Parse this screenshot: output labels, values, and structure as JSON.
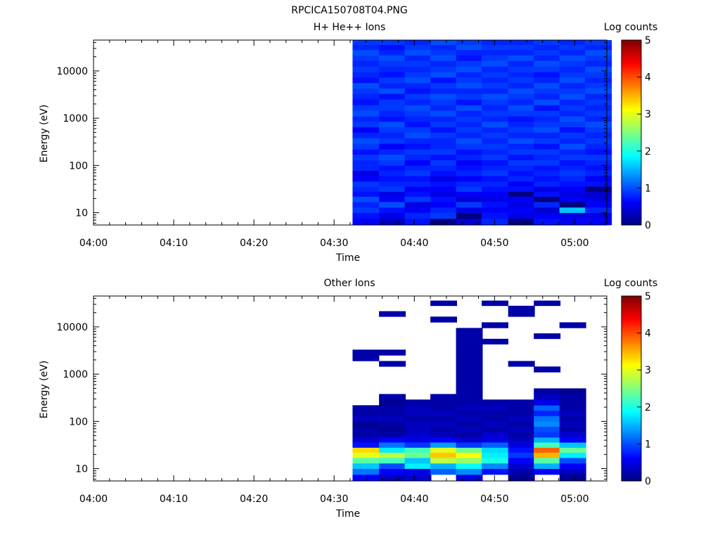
{
  "figure": {
    "title": "RPCICA150708T04.PNG"
  },
  "chart_data": [
    {
      "type": "heatmap",
      "title": "H+ He++ Ions",
      "xlabel": "Time",
      "ylabel": "Energy (eV)",
      "x_ticks": [
        "04:00",
        "04:10",
        "04:20",
        "04:30",
        "04:40",
        "04:50",
        "05:00"
      ],
      "x_range_minutes": [
        0,
        64
      ],
      "y_scale": "log",
      "y_range": [
        5.5,
        45000
      ],
      "y_ticks": [
        "10",
        "100",
        "1000",
        "10000"
      ],
      "colorbar": {
        "label": "Log counts",
        "min": 0,
        "max": 5,
        "ticks": [
          "0",
          "1",
          "2",
          "3",
          "4",
          "5"
        ]
      },
      "time_columns_minutes": [
        32.3,
        35.6,
        38.8,
        42.0,
        45.2,
        48.4,
        51.7,
        54.9,
        58.1,
        61.3
      ],
      "energy_bin_edges": [
        5.5,
        7.5,
        10.0,
        13.0,
        17.0,
        22.0,
        28.0,
        36.0,
        46.0,
        60.0,
        78.0,
        100.0,
        130.0,
        170.0,
        220.0,
        290.0,
        380.0,
        500.0,
        650.0,
        850.0,
        1100.0,
        1450.0,
        1900.0,
        2500.0,
        3300.0,
        4300.0,
        5600.0,
        7300.0,
        9500.0,
        12500.0,
        16500.0,
        21500.0,
        28000.0,
        36000.0,
        45000.0
      ],
      "values": [
        [
          0.6,
          0.7,
          0.9,
          0.8,
          1.0,
          0.7,
          0.8,
          0.9,
          0.6,
          0.5,
          0.8,
          0.8,
          0.9,
          0.7,
          0.9,
          1.0,
          0.8,
          0.6,
          0.9,
          0.8,
          1.0,
          0.9,
          0.7,
          0.8,
          0.9,
          1.0,
          0.7,
          0.8,
          0.9,
          0.8,
          0.9,
          1.0,
          0.8,
          0.9
        ],
        [
          0.3,
          0.5,
          0.7,
          1.0,
          0.6,
          0.5,
          0.9,
          0.8,
          0.7,
          0.8,
          0.7,
          0.9,
          1.0,
          0.8,
          0.6,
          0.9,
          0.8,
          0.9,
          1.0,
          0.7,
          0.8,
          0.9,
          0.9,
          0.7,
          1.0,
          0.8,
          0.9,
          0.7,
          0.8,
          0.9,
          1.0,
          0.8,
          0.7,
          0.9
        ],
        [
          0.7,
          0.8,
          0.6,
          0.5,
          0.9,
          0.7,
          0.6,
          0.8,
          0.7,
          0.9,
          0.8,
          0.6,
          0.8,
          0.9,
          0.7,
          0.8,
          1.0,
          0.9,
          0.7,
          0.8,
          0.9,
          1.0,
          0.8,
          0.9,
          0.7,
          0.8,
          1.0,
          0.9,
          0.8,
          0.9,
          0.8,
          1.0,
          0.9,
          0.8
        ],
        [
          0.0,
          0.9,
          0.8,
          0.6,
          0.7,
          0.5,
          0.6,
          0.7,
          0.5,
          0.7,
          0.8,
          0.9,
          0.7,
          0.9,
          0.8,
          0.8,
          0.9,
          0.7,
          0.9,
          0.8,
          1.0,
          0.8,
          0.9,
          1.0,
          0.8,
          0.9,
          0.7,
          1.0,
          0.9,
          0.8,
          1.0,
          0.9,
          0.8,
          1.0
        ],
        [
          0.4,
          0.0,
          0.5,
          0.9,
          0.4,
          0.6,
          0.9,
          0.8,
          0.6,
          0.8,
          0.7,
          0.6,
          0.8,
          0.7,
          0.9,
          1.0,
          0.8,
          0.9,
          0.8,
          0.9,
          0.8,
          1.0,
          0.7,
          0.9,
          0.8,
          1.0,
          0.9,
          0.8,
          1.0,
          0.9,
          0.7,
          0.8,
          1.0,
          0.9
        ],
        [
          0.8,
          0.7,
          0.6,
          0.7,
          0.5,
          0.6,
          0.7,
          0.8,
          0.7,
          0.9,
          0.8,
          0.7,
          0.9,
          0.8,
          0.9,
          0.8,
          0.9,
          0.8,
          1.0,
          0.8,
          0.9,
          0.8,
          0.9,
          1.0,
          0.8,
          0.9,
          0.8,
          0.9,
          0.8,
          1.0,
          0.9,
          0.8,
          0.9,
          0.8
        ],
        [
          0.0,
          0.5,
          0.6,
          0.5,
          0.6,
          0.0,
          0.7,
          0.6,
          0.8,
          0.7,
          0.8,
          0.9,
          0.7,
          0.9,
          0.8,
          1.0,
          0.8,
          0.9,
          0.8,
          0.7,
          0.9,
          1.0,
          0.8,
          0.9,
          1.0,
          0.8,
          0.9,
          0.8,
          0.9,
          0.8,
          1.0,
          0.8,
          0.9,
          0.8
        ],
        [
          0.7,
          0.6,
          0.4,
          0.8,
          0.0,
          0.7,
          0.5,
          0.8,
          0.7,
          0.8,
          0.7,
          0.9,
          0.8,
          0.9,
          0.7,
          0.9,
          0.8,
          1.0,
          0.9,
          0.8,
          0.9,
          0.7,
          1.0,
          0.8,
          0.9,
          1.0,
          0.8,
          0.7,
          0.9,
          1.0,
          0.8,
          0.9,
          0.8,
          0.9
        ],
        [
          0.6,
          0.5,
          1.6,
          0.0,
          0.6,
          0.5,
          0.6,
          0.7,
          0.8,
          0.9,
          0.8,
          0.7,
          0.9,
          0.8,
          1.0,
          0.8,
          0.9,
          0.7,
          0.9,
          1.0,
          0.8,
          0.9,
          0.8,
          1.0,
          0.9,
          0.8,
          1.0,
          0.9,
          0.8,
          0.9,
          1.0,
          0.8,
          0.9,
          0.8
        ],
        [
          0.6,
          0.5,
          0.8,
          0.6,
          0.5,
          0.4,
          0.0,
          0.7,
          0.6,
          0.8,
          0.7,
          0.8,
          0.9,
          0.7,
          0.8,
          0.9,
          0.8,
          0.9,
          1.0,
          0.8,
          0.9,
          0.8,
          0.9,
          0.8,
          1.0,
          0.9,
          0.8,
          0.9,
          1.0,
          0.8,
          0.9,
          1.0,
          0.8,
          0.9
        ]
      ]
    },
    {
      "type": "heatmap",
      "title": "Other Ions",
      "xlabel": "Time",
      "ylabel": "Energy (eV)",
      "x_ticks": [
        "04:00",
        "04:10",
        "04:20",
        "04:30",
        "04:40",
        "04:50",
        "05:00"
      ],
      "x_range_minutes": [
        0,
        64
      ],
      "y_scale": "log",
      "y_range": [
        5.5,
        45000
      ],
      "y_ticks": [
        "10",
        "100",
        "1000",
        "10000"
      ],
      "colorbar": {
        "label": "Log counts",
        "min": 0,
        "max": 5,
        "ticks": [
          "0",
          "1",
          "2",
          "3",
          "4",
          "5"
        ]
      },
      "time_columns_minutes": [
        32.3,
        35.6,
        38.8,
        42.0,
        45.2,
        48.4,
        51.7,
        54.9,
        58.1,
        61.3
      ],
      "energy_bin_edges": [
        5.5,
        7.5,
        10.0,
        13.0,
        17.0,
        22.0,
        28.0,
        36.0,
        46.0,
        60.0,
        78.0,
        100.0,
        130.0,
        170.0,
        220.0,
        290.0,
        380.0,
        500.0,
        650.0,
        850.0,
        1100.0,
        1450.0,
        1900.0,
        2500.0,
        3300.0,
        4300.0,
        5600.0,
        7300.0,
        9500.0,
        12500.0,
        16500.0,
        21500.0,
        28000.0,
        36000.0,
        45000.0
      ],
      "values": [
        [
          0.6,
          1.2,
          1.6,
          2.3,
          3.0,
          3.3,
          0.7,
          0.4,
          0.2,
          0.2,
          0.1,
          0.3,
          0.2,
          0.2,
          null,
          null,
          null,
          null,
          null,
          null,
          null,
          null,
          0.2,
          0.2,
          null,
          null,
          null,
          null,
          null,
          null,
          null,
          null,
          null,
          null
        ],
        [
          0.3,
          0.6,
          1.0,
          2.2,
          2.8,
          1.8,
          1.2,
          0.6,
          0.2,
          0.1,
          0.2,
          0.3,
          0.2,
          0.2,
          0.1,
          0.2,
          null,
          null,
          null,
          null,
          null,
          0.2,
          null,
          0.2,
          null,
          null,
          null,
          null,
          null,
          null,
          0.2,
          null,
          null,
          null
        ],
        [
          0.4,
          0.5,
          1.8,
          1.6,
          2.4,
          2.2,
          0.9,
          0.5,
          0.4,
          0.3,
          0.3,
          0.2,
          0.3,
          0.3,
          0.2,
          null,
          null,
          null,
          null,
          null,
          null,
          null,
          null,
          null,
          null,
          null,
          null,
          null,
          null,
          null,
          null,
          null,
          null,
          null
        ],
        [
          null,
          1.1,
          1.5,
          2.8,
          3.4,
          3.0,
          1.4,
          0.6,
          0.3,
          0.2,
          0.3,
          0.2,
          0.3,
          0.2,
          0.2,
          0.2,
          null,
          null,
          null,
          null,
          null,
          null,
          null,
          null,
          null,
          null,
          null,
          null,
          null,
          0.2,
          null,
          null,
          0.2,
          null
        ],
        [
          0.5,
          1.3,
          1.9,
          2.6,
          3.1,
          2.4,
          0.9,
          0.4,
          0.2,
          0.3,
          0.2,
          0.3,
          0.2,
          0.3,
          0.2,
          0.2,
          0.2,
          0.2,
          0.2,
          0.2,
          0.2,
          0.2,
          0.2,
          0.2,
          0.2,
          0.2,
          0.2,
          0.2,
          null,
          null,
          null,
          null,
          null,
          null
        ],
        [
          null,
          0.7,
          1.3,
          2.0,
          1.8,
          1.7,
          1.1,
          0.5,
          0.4,
          0.2,
          0.3,
          0.2,
          0.2,
          0.3,
          0.2,
          null,
          null,
          null,
          null,
          null,
          null,
          null,
          null,
          null,
          null,
          0.2,
          null,
          null,
          0.2,
          null,
          null,
          null,
          0.2,
          null
        ],
        [
          0.1,
          0.2,
          0.4,
          0.6,
          0.9,
          0.7,
          0.5,
          0.3,
          0.2,
          0.3,
          0.2,
          0.3,
          0.2,
          0.2,
          0.2,
          null,
          null,
          null,
          null,
          null,
          null,
          0.2,
          null,
          null,
          null,
          null,
          null,
          null,
          null,
          null,
          0.2,
          0.2,
          null,
          null
        ],
        [
          null,
          0.6,
          1.5,
          2.3,
          3.5,
          3.9,
          2.2,
          1.5,
          0.9,
          1.0,
          1.3,
          1.2,
          0.8,
          1.1,
          0.5,
          0.3,
          0.2,
          null,
          null,
          null,
          0.2,
          null,
          null,
          null,
          null,
          null,
          0.2,
          null,
          null,
          null,
          null,
          null,
          0.2,
          null
        ],
        [
          0.1,
          0.3,
          0.6,
          1.0,
          1.8,
          2.4,
          1.6,
          0.6,
          0.4,
          0.2,
          0.3,
          0.2,
          0.3,
          0.2,
          0.2,
          0.2,
          0.1,
          null,
          null,
          null,
          null,
          null,
          null,
          null,
          null,
          null,
          null,
          null,
          0.2,
          null,
          null,
          null,
          null,
          null
        ],
        [
          null,
          null,
          null,
          null,
          null,
          null,
          null,
          null,
          null,
          null,
          null,
          null,
          null,
          null,
          null,
          null,
          null,
          null,
          null,
          null,
          null,
          null,
          null,
          null,
          null,
          null,
          null,
          null,
          null,
          null,
          null,
          null,
          null,
          null
        ]
      ]
    }
  ]
}
